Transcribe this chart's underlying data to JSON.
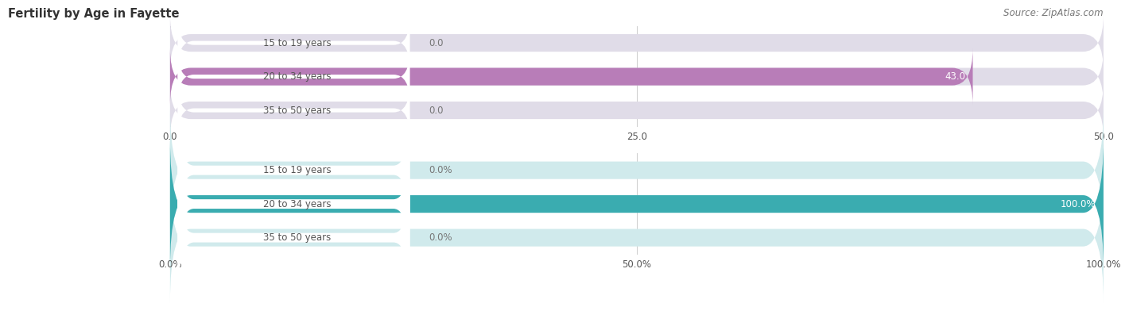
{
  "title": "Fertility by Age in Fayette",
  "source": "Source: ZipAtlas.com",
  "top_chart": {
    "categories": [
      "15 to 19 years",
      "20 to 34 years",
      "35 to 50 years"
    ],
    "values": [
      0.0,
      43.0,
      0.0
    ],
    "xmax": 50.0,
    "xticks": [
      0.0,
      25.0,
      50.0
    ],
    "xtick_labels": [
      "0.0",
      "25.0",
      "50.0"
    ],
    "bar_color": "#b87db8",
    "bg_color": "#e0dce8",
    "bar_height": 0.52
  },
  "bottom_chart": {
    "categories": [
      "15 to 19 years",
      "20 to 34 years",
      "35 to 50 years"
    ],
    "values": [
      0.0,
      100.0,
      0.0
    ],
    "xmax": 100.0,
    "xticks": [
      0.0,
      50.0,
      100.0
    ],
    "xtick_labels": [
      "0.0%",
      "50.0%",
      "100.0%"
    ],
    "bar_color": "#3aacb0",
    "bg_color": "#d0eaec",
    "bar_height": 0.52
  },
  "label_color": "#555555",
  "value_color_inside": "#ffffff",
  "value_color_outside": "#777777",
  "title_color": "#333333",
  "source_color": "#777777",
  "background": "#ffffff",
  "label_box_bg": "#ffffff",
  "grid_color": "#cccccc",
  "separator_color": "#dddddd"
}
